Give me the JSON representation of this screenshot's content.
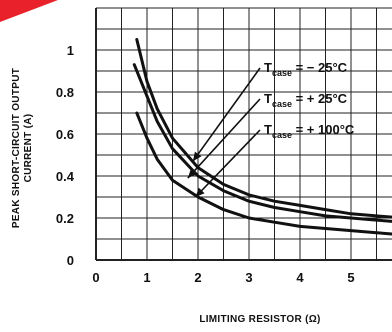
{
  "chart_data": {
    "type": "line",
    "title": "",
    "xlabel": "LIMITING RESISTOR (Ω)",
    "ylabel": [
      "PEAK SHORT-CIRCUIT OUTPUT",
      "CURRENT (A)"
    ],
    "xlim": [
      0,
      6
    ],
    "ylim": [
      0,
      1.2
    ],
    "grid": true,
    "x_ticks": [
      "0",
      "1",
      "2",
      "3",
      "4",
      "5"
    ],
    "y_ticks": [
      "0",
      "0.2",
      "0.4",
      "0.6",
      "0.8",
      "1"
    ],
    "legend_placement": "annotation arrows, upper-right",
    "series": [
      {
        "name": "T",
        "name_sub": "case",
        "name_tail": " = − 25°C",
        "x": [
          0.8,
          1.0,
          1.2,
          1.5,
          2.0,
          2.5,
          3.0,
          3.5,
          4.0,
          4.5,
          5.0,
          5.5,
          6.0
        ],
        "y": [
          1.05,
          0.85,
          0.72,
          0.58,
          0.44,
          0.36,
          0.31,
          0.28,
          0.26,
          0.24,
          0.22,
          0.21,
          0.2
        ]
      },
      {
        "name": "T",
        "name_sub": "case",
        "name_tail": " = + 25°C",
        "x": [
          0.75,
          1.0,
          1.2,
          1.5,
          2.0,
          2.5,
          3.0,
          3.5,
          4.0,
          4.5,
          5.0,
          5.5,
          6.0
        ],
        "y": [
          0.93,
          0.78,
          0.66,
          0.53,
          0.4,
          0.33,
          0.28,
          0.25,
          0.23,
          0.21,
          0.2,
          0.19,
          0.18
        ]
      },
      {
        "name": "T",
        "name_sub": "case",
        "name_tail": " = + 100°C",
        "x": [
          0.8,
          1.0,
          1.2,
          1.5,
          2.0,
          2.5,
          3.0,
          3.5,
          4.0,
          4.5,
          5.0,
          5.5,
          6.0
        ],
        "y": [
          0.7,
          0.58,
          0.48,
          0.38,
          0.3,
          0.24,
          0.2,
          0.18,
          0.16,
          0.15,
          0.14,
          0.13,
          0.12
        ]
      }
    ]
  },
  "colors": {
    "line": "#111111",
    "grid": "#222222",
    "background": "#ffffff",
    "corner_mark": "#e8212a"
  }
}
